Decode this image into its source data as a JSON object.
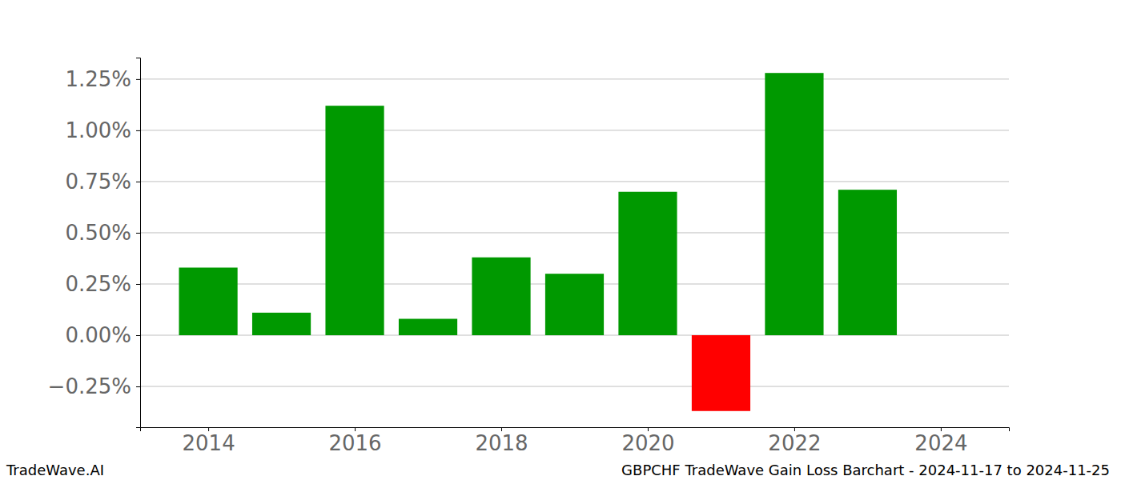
{
  "chart_data": {
    "type": "bar",
    "title": "GBPCHF TradeWave Gain Loss Barchart - 2024-11-17 to 2024-11-25",
    "annotations": [
      "TradeWave.AI"
    ],
    "x": [
      2014,
      2015,
      2016,
      2017,
      2018,
      2019,
      2020,
      2021,
      2022,
      2023
    ],
    "values": [
      0.33,
      0.11,
      1.12,
      0.08,
      0.38,
      0.3,
      0.7,
      -0.37,
      1.28,
      0.71
    ],
    "colors": [
      "#009900",
      "#009900",
      "#009900",
      "#009900",
      "#009900",
      "#009900",
      "#009900",
      "#ff0000",
      "#009900",
      "#009900"
    ],
    "xlim": [
      2013.07,
      2024.93
    ],
    "xticks": [
      2014,
      2016,
      2018,
      2020,
      2022,
      2024
    ],
    "ylim": [
      -0.449,
      1.355
    ],
    "yticks": [
      {
        "value": -0.25,
        "label": "−0.25%"
      },
      {
        "value": 0,
        "label": "0.00%"
      },
      {
        "value": 0.25,
        "label": "0.25%"
      },
      {
        "value": 0.5,
        "label": "0.50%"
      },
      {
        "value": 0.75,
        "label": "0.75%"
      },
      {
        "value": 1,
        "label": "1.00%"
      },
      {
        "value": 1.25,
        "label": "1.25%"
      }
    ],
    "grid": true
  }
}
